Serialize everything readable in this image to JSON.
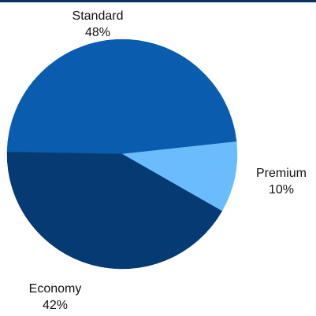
{
  "chart_data": {
    "type": "pie",
    "title": "",
    "slices": [
      {
        "label": "Standard",
        "value": 48,
        "value_label": "48%",
        "color": "#0a5caf"
      },
      {
        "label": "Premium",
        "value": 10,
        "value_label": "10%",
        "color": "#6bbcfd"
      },
      {
        "label": "Economy",
        "value": 42,
        "value_label": "42%",
        "color": "#063a73"
      }
    ],
    "start_angle_deg": 181,
    "direction": "clockwise",
    "legend": "none",
    "data_labels": "category and percent outside slices"
  }
}
